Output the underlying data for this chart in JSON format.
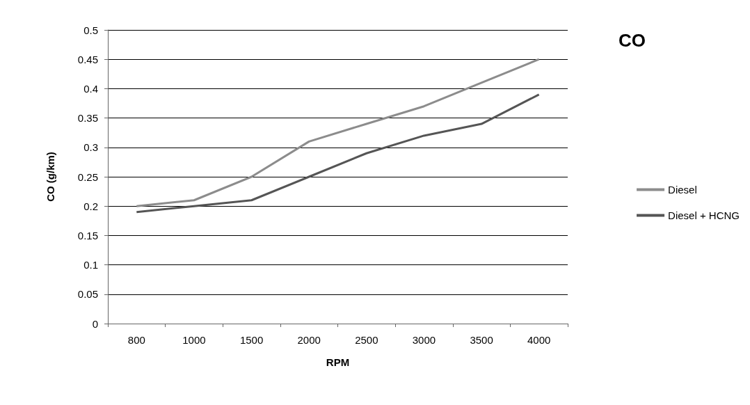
{
  "chart_data": {
    "type": "line",
    "title": "CO",
    "xlabel": "RPM",
    "ylabel": "CO (g/km)",
    "categories": [
      "800",
      "1000",
      "1500",
      "2000",
      "2500",
      "3000",
      "3500",
      "4000"
    ],
    "series": [
      {
        "name": "Diesel",
        "color": "#8c8c8c",
        "values": [
          0.2,
          0.21,
          0.25,
          0.31,
          0.34,
          0.37,
          0.41,
          0.45
        ]
      },
      {
        "name": "Diesel + HCNG",
        "color": "#555555",
        "values": [
          0.19,
          0.2,
          0.21,
          0.25,
          0.29,
          0.32,
          0.34,
          0.39
        ]
      }
    ],
    "ylim": [
      0,
      0.5
    ],
    "yticks": [
      0,
      0.05,
      0.1,
      0.15,
      0.2,
      0.25,
      0.3,
      0.35,
      0.4,
      0.45,
      0.5
    ],
    "grid": "y",
    "legend": "right",
    "marker": "none",
    "line_style": "solid"
  }
}
